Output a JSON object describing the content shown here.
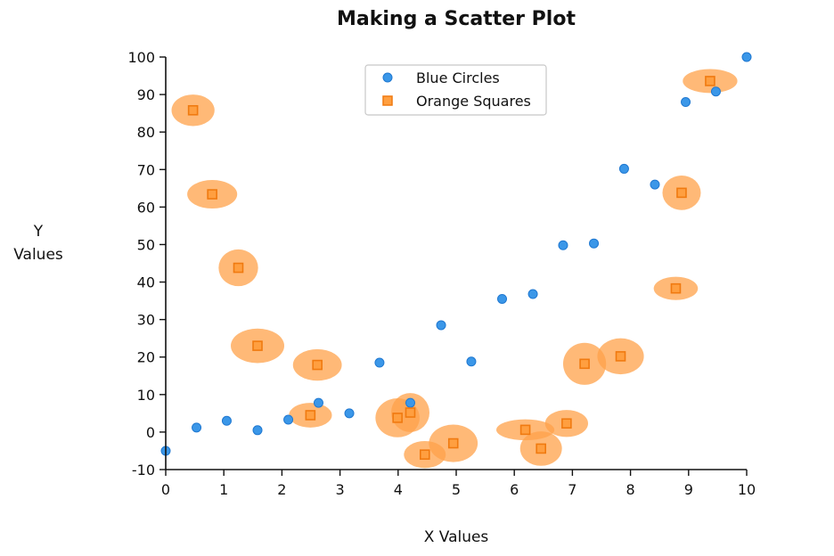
{
  "chart_data": {
    "type": "scatter",
    "title": "Making a Scatter Plot",
    "xlabel": "X Values",
    "ylabel_lines": [
      "Y",
      "Values"
    ],
    "xlim": [
      0,
      10
    ],
    "ylim": [
      -10,
      100
    ],
    "xticks": [
      "0",
      "1",
      "2",
      "3",
      "4",
      "5",
      "6",
      "7",
      "8",
      "9",
      "10"
    ],
    "yticks": [
      "-10",
      "0",
      "10",
      "20",
      "30",
      "40",
      "50",
      "60",
      "70",
      "80",
      "90",
      "100"
    ],
    "legend_position": "top-center",
    "series": [
      {
        "name": "Blue Circles",
        "marker": "circle",
        "color": "#3b97e8",
        "edge_color": "#1f78d1",
        "points": [
          {
            "x": 0.0,
            "y": -5.0
          },
          {
            "x": 0.53,
            "y": 1.2
          },
          {
            "x": 1.05,
            "y": 3.0
          },
          {
            "x": 1.58,
            "y": 0.5
          },
          {
            "x": 2.11,
            "y": 3.3
          },
          {
            "x": 2.63,
            "y": 7.8
          },
          {
            "x": 3.16,
            "y": 5.0
          },
          {
            "x": 3.68,
            "y": 18.5
          },
          {
            "x": 4.21,
            "y": 7.8
          },
          {
            "x": 4.74,
            "y": 28.5
          },
          {
            "x": 5.26,
            "y": 18.8
          },
          {
            "x": 5.79,
            "y": 35.5
          },
          {
            "x": 6.32,
            "y": 36.8
          },
          {
            "x": 6.84,
            "y": 49.8
          },
          {
            "x": 7.37,
            "y": 50.3
          },
          {
            "x": 7.89,
            "y": 70.2
          },
          {
            "x": 8.42,
            "y": 66.0
          },
          {
            "x": 8.95,
            "y": 88.0
          },
          {
            "x": 9.47,
            "y": 90.8
          },
          {
            "x": 10.0,
            "y": 100.0
          }
        ]
      },
      {
        "name": "Orange Squares",
        "marker": "square",
        "color": "#ff9f40",
        "edge_color": "#f07a10",
        "halo_color": "#ffa24a",
        "points": [
          {
            "x": 0.47,
            "y": 85.8,
            "hw": 0.37,
            "hh": 4.2
          },
          {
            "x": 0.8,
            "y": 63.4,
            "hw": 0.43,
            "hh": 3.8
          },
          {
            "x": 1.25,
            "y": 43.8,
            "hw": 0.34,
            "hh": 4.9
          },
          {
            "x": 1.58,
            "y": 23.0,
            "hw": 0.46,
            "hh": 4.6
          },
          {
            "x": 2.61,
            "y": 17.9,
            "hw": 0.42,
            "hh": 4.2
          },
          {
            "x": 2.49,
            "y": 4.5,
            "hw": 0.37,
            "hh": 3.3
          },
          {
            "x": 3.99,
            "y": 3.8,
            "hw": 0.38,
            "hh": 5.2
          },
          {
            "x": 4.21,
            "y": 5.2,
            "hw": 0.33,
            "hh": 5.2
          },
          {
            "x": 4.46,
            "y": -6.0,
            "hw": 0.36,
            "hh": 3.6
          },
          {
            "x": 4.95,
            "y": -3.0,
            "hw": 0.42,
            "hh": 5.0
          },
          {
            "x": 6.19,
            "y": 0.6,
            "hw": 0.5,
            "hh": 2.8
          },
          {
            "x": 6.46,
            "y": -4.4,
            "hw": 0.36,
            "hh": 4.6
          },
          {
            "x": 6.9,
            "y": 2.3,
            "hw": 0.37,
            "hh": 3.6
          },
          {
            "x": 7.21,
            "y": 18.2,
            "hw": 0.37,
            "hh": 5.6
          },
          {
            "x": 7.83,
            "y": 20.2,
            "hw": 0.4,
            "hh": 4.8
          },
          {
            "x": 8.78,
            "y": 38.3,
            "hw": 0.38,
            "hh": 3.1
          },
          {
            "x": 8.88,
            "y": 63.8,
            "hw": 0.33,
            "hh": 4.6
          },
          {
            "x": 9.37,
            "y": 93.6,
            "hw": 0.47,
            "hh": 3.2
          }
        ]
      }
    ]
  }
}
